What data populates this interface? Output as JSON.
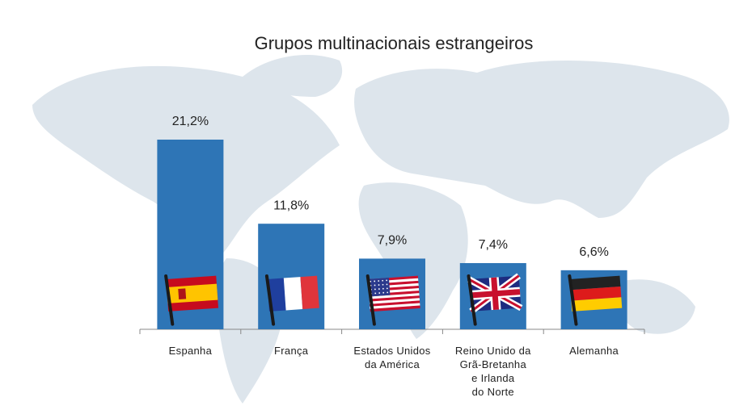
{
  "chart_data": {
    "type": "bar",
    "title": "Grupos multinacionais estrangeiros",
    "categories": [
      "Espanha",
      "França",
      "Estados Unidos\nda América",
      "Reino Unido da\nGrã-Bretanha\ne Irlanda\ndo Norte",
      "Alemanha"
    ],
    "values": [
      21.2,
      11.8,
      7.9,
      7.4,
      6.6
    ],
    "value_labels": [
      "21,2%",
      "11,8%",
      "7,9%",
      "7,4%",
      "6,6%"
    ],
    "color": "#2e75b6"
  }
}
